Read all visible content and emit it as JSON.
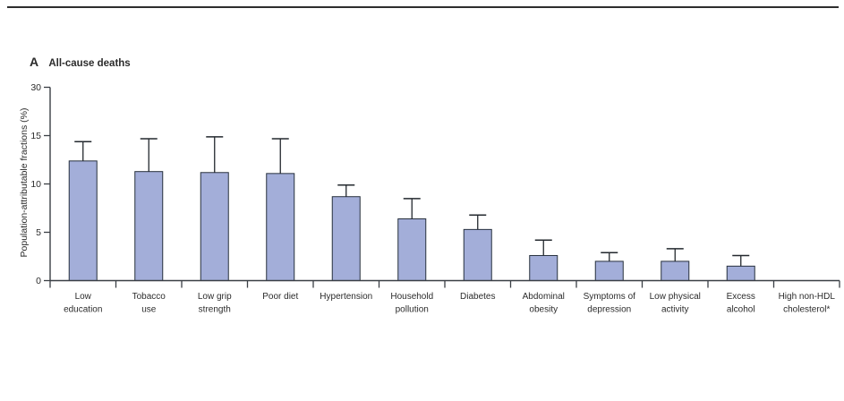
{
  "panel": {
    "letter": "A",
    "title": "All-cause deaths"
  },
  "colors": {
    "bar_fill": "#a3aed9",
    "bar_stroke": "#27303d",
    "axis": "#3a3f45",
    "error_bar": "#23282e",
    "text": "#2b2b2b",
    "top_rule": "#2e2e2e"
  },
  "chart_data": {
    "type": "bar",
    "title": "A  All-cause deaths",
    "xlabel": "",
    "ylabel": "Population-attributable fractions (%)",
    "grid": false,
    "legend": "none",
    "error_bars": "upper whisker only",
    "ytick_labels": [
      "0",
      "5",
      "10",
      "15",
      "30"
    ],
    "yaxis_note": "ticks evenly spaced; scale compressed between 15 and 30",
    "categories": [
      "Low education",
      "Tobacco use",
      "Low grip strength",
      "Poor diet",
      "Hypertension",
      "Household pollution",
      "Diabetes",
      "Abdominal obesity",
      "Symptoms of depression",
      "Low physical activity",
      "Excess alcohol",
      "High non-HDL cholesterol*"
    ],
    "category_label_lines": [
      [
        "Low",
        "education"
      ],
      [
        "Tobacco",
        "use"
      ],
      [
        "Low grip",
        "strength"
      ],
      [
        "Poor diet"
      ],
      [
        "Hypertension"
      ],
      [
        "Household",
        "pollution"
      ],
      [
        "Diabetes"
      ],
      [
        "Abdominal",
        "obesity"
      ],
      [
        "Symptoms of",
        "depression"
      ],
      [
        "Low physical",
        "activity"
      ],
      [
        "Excess",
        "alcohol"
      ],
      [
        "High non-HDL",
        "cholesterol*"
      ]
    ],
    "values": [
      12.4,
      11.3,
      11.2,
      11.1,
      8.7,
      6.4,
      5.3,
      2.6,
      2.0,
      2.0,
      1.5,
      0
    ],
    "upper_ci": [
      14.4,
      14.7,
      14.9,
      14.7,
      9.9,
      8.5,
      6.8,
      4.2,
      2.9,
      3.3,
      2.6,
      0
    ]
  }
}
